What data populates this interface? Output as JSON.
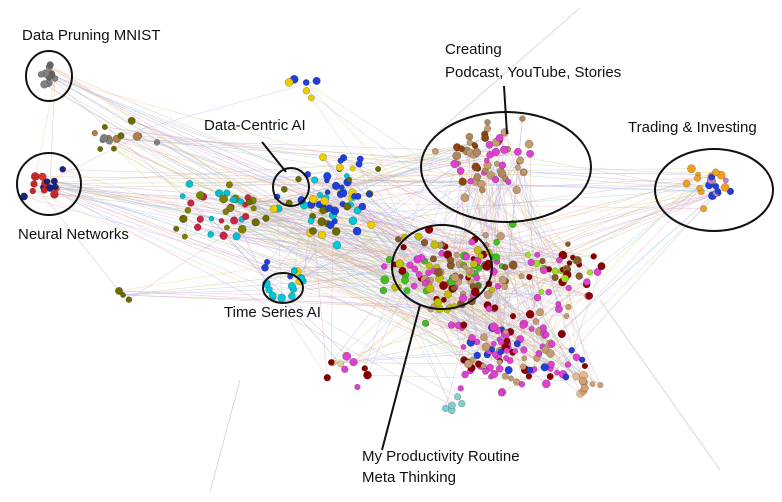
{
  "annotations": [
    {
      "lines": [
        "Data Pruning MNIST"
      ]
    },
    {
      "lines": [
        "Neural Networks"
      ]
    },
    {
      "lines": [
        "Data-Centric AI"
      ]
    },
    {
      "lines": [
        "Time Series AI"
      ]
    },
    {
      "lines": [
        "Creating",
        "Podcast, YouTube, Stories"
      ]
    },
    {
      "lines": [
        "Trading & Investing"
      ]
    },
    {
      "lines": [
        "My Productivity Routine",
        "Meta Thinking"
      ]
    }
  ]
}
